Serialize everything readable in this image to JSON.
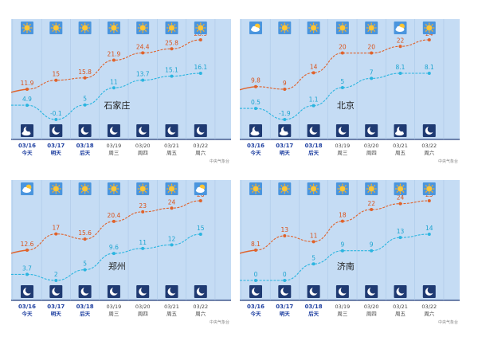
{
  "chart_data": [
    {
      "type": "line",
      "city": "石家庄",
      "dates": [
        "03/16",
        "03/17",
        "03/18",
        "03/19",
        "03/20",
        "03/21",
        "03/22"
      ],
      "days": [
        "今天",
        "明天",
        "后天",
        "周三",
        "周四",
        "周五",
        "周六"
      ],
      "series": [
        {
          "values": [
            11.9,
            15,
            15.8,
            21.9,
            24.4,
            25.8,
            28.9
          ],
          "color": "#e0622a"
        },
        {
          "values": [
            4.9,
            -0.1,
            5,
            11,
            13.7,
            15.1,
            16.1
          ],
          "color": "#2bb5e0"
        }
      ],
      "day_icons": [
        "sun",
        "sun",
        "sun",
        "sun",
        "sun",
        "sun",
        "sun"
      ],
      "night_icons": [
        "moon-cloud",
        "moon",
        "moon",
        "moon",
        "moon",
        "moon",
        "moon"
      ],
      "source": "中央气象台"
    },
    {
      "type": "line",
      "city": "北京",
      "dates": [
        "03/16",
        "03/17",
        "03/18",
        "03/19",
        "03/20",
        "03/21",
        "03/22"
      ],
      "days": [
        "今天",
        "明天",
        "后天",
        "周三",
        "周四",
        "周五",
        "周六"
      ],
      "series": [
        {
          "values": [
            9.8,
            9,
            14,
            20,
            20,
            22,
            24
          ],
          "color": "#e0622a"
        },
        {
          "values": [
            0.5,
            -1.9,
            1.1,
            5,
            7,
            8.1,
            8.1
          ],
          "color": "#2bb5e0"
        }
      ],
      "day_icons": [
        "cloud-sun",
        "sun",
        "sun",
        "sun",
        "sun",
        "cloud-sun",
        "sun"
      ],
      "night_icons": [
        "moon-cloud",
        "moon-cloud",
        "moon",
        "moon",
        "moon",
        "moon-cloud",
        "moon"
      ],
      "source": "中央气象台"
    },
    {
      "type": "line",
      "city": "郑州",
      "dates": [
        "03/16",
        "03/17",
        "03/18",
        "03/19",
        "03/20",
        "03/21",
        "03/22"
      ],
      "days": [
        "今天",
        "明天",
        "后天",
        "周三",
        "周四",
        "周五",
        "周六"
      ],
      "series": [
        {
          "values": [
            12.6,
            17,
            15.6,
            20.4,
            23,
            24,
            26
          ],
          "color": "#e0622a"
        },
        {
          "values": [
            3.7,
            2,
            5,
            9.6,
            11,
            12,
            15
          ],
          "color": "#2bb5e0"
        }
      ],
      "day_icons": [
        "cloud-sun",
        "sun",
        "sun",
        "sun",
        "sun",
        "sun",
        "cloud-sun"
      ],
      "night_icons": [
        "moon",
        "moon",
        "moon",
        "moon",
        "moon",
        "moon",
        "moon"
      ],
      "source": "中央气象台"
    },
    {
      "type": "line",
      "city": "济南",
      "dates": [
        "03/16",
        "03/17",
        "03/18",
        "03/19",
        "03/20",
        "03/21",
        "03/22"
      ],
      "days": [
        "今天",
        "明天",
        "后天",
        "周三",
        "周四",
        "周五",
        "周六"
      ],
      "series": [
        {
          "values": [
            8.1,
            13,
            11,
            18,
            22,
            24,
            25
          ],
          "color": "#e0622a"
        },
        {
          "values": [
            0,
            0,
            5,
            9,
            9,
            13,
            14
          ],
          "color": "#2bb5e0"
        }
      ],
      "day_icons": [
        "sun",
        "sun",
        "sun",
        "sun",
        "sun",
        "sun",
        "sun"
      ],
      "night_icons": [
        "moon",
        "moon",
        "moon",
        "moon",
        "moon",
        "moon",
        "moon"
      ],
      "source": "中央气象台"
    }
  ]
}
